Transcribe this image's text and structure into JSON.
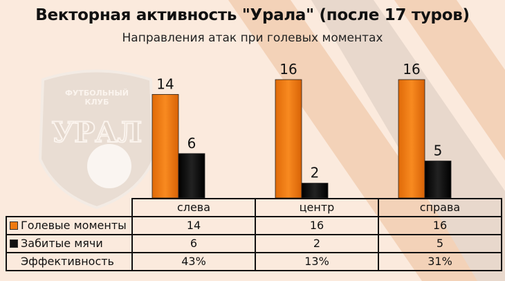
{
  "title": "Векторная активность \"Урала\" (после 17 туров)",
  "subtitle": "Направления атак при голевых моментах",
  "watermark": {
    "logo_text": [
      "ФУТБОЛЬНЫЙ",
      "КЛУБ",
      "УРАЛ"
    ]
  },
  "chart_data": {
    "type": "bar",
    "title": "Векторная активность \"Урала\" (после 17 туров)",
    "subtitle": "Направления атак при голевых моментах",
    "categories": [
      "слева",
      "центр",
      "справа"
    ],
    "series": [
      {
        "name": "Голевые моменты",
        "values": [
          14,
          16,
          16
        ],
        "color": "#f07a10"
      },
      {
        "name": "Забитые мячи",
        "values": [
          6,
          2,
          5
        ],
        "color": "#111111"
      }
    ],
    "table_extra_row": {
      "name": "Эффективность",
      "values": [
        "43%",
        "13%",
        "31%"
      ]
    },
    "ylim": [
      0,
      16
    ],
    "grid": false,
    "legend": "data-table"
  }
}
